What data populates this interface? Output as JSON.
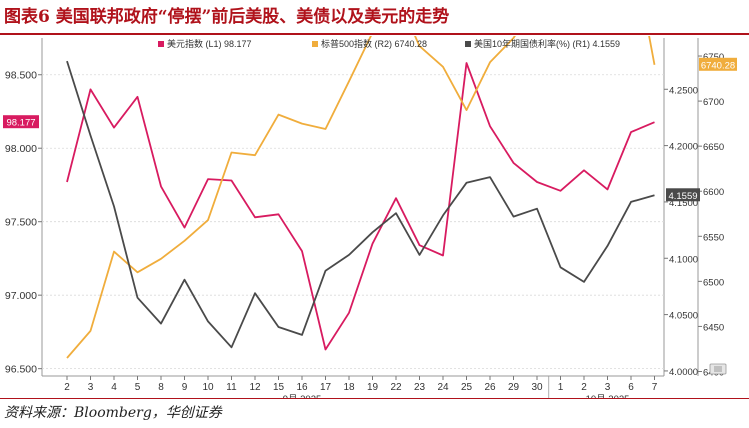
{
  "title": "图表6  美国联邦政府“停摆”前后美股、美债以及美元的走势",
  "source": "资料来源：Bloomberg，华创证券",
  "chart_data": {
    "type": "line",
    "categories": [
      "2",
      "3",
      "4",
      "5",
      "8",
      "9",
      "10",
      "11",
      "12",
      "15",
      "16",
      "17",
      "18",
      "19",
      "22",
      "23",
      "24",
      "25",
      "26",
      "29",
      "30",
      "1",
      "2",
      "3",
      "6",
      "7"
    ],
    "month_labels": [
      {
        "label": "9月 2025",
        "from_index": 0,
        "to_index": 20
      },
      {
        "label": "10月 2025",
        "from_index": 21,
        "to_index": 25
      }
    ],
    "left_axis": {
      "ylim": [
        96.45,
        98.75
      ],
      "ticks": [
        "96.500",
        "97.000",
        "97.500",
        "98.000",
        "98.500"
      ],
      "tick_values": [
        96.5,
        97.0,
        97.5,
        98.0,
        98.5
      ]
    },
    "right_axis_r1": {
      "ylim": [
        3.9955,
        4.2955
      ],
      "ticks": [
        "4.0000",
        "4.0500",
        "4.1000",
        "4.1500",
        "4.2000",
        "4.2500"
      ],
      "tick_values": [
        4.0,
        4.05,
        4.1,
        4.15,
        4.2,
        4.25
      ]
    },
    "right_axis_r2": {
      "ylim": [
        6395,
        6770
      ],
      "ticks": [
        "6400",
        "6450",
        "6500",
        "6550",
        "6600",
        "6650",
        "6700",
        "6750"
      ],
      "tick_values": [
        6400,
        6450,
        6500,
        6550,
        6600,
        6650,
        6700,
        6750
      ]
    },
    "series": [
      {
        "name": "美元指数 (L1) 98.177",
        "axis": "left",
        "color": "#d81b60",
        "values": [
          97.77,
          98.4,
          98.14,
          98.35,
          97.74,
          97.46,
          97.79,
          97.78,
          97.53,
          97.55,
          97.3,
          96.63,
          96.88,
          97.35,
          97.66,
          97.34,
          97.27,
          98.58,
          98.15,
          97.9,
          97.77,
          97.71,
          97.85,
          97.72,
          98.11,
          98.177
        ]
      },
      {
        "name": "标普500指数 (R2) 6740.28",
        "axis": "r2",
        "color": "#f0ad3c",
        "values": [
          6415,
          6445,
          6533,
          6510,
          6525,
          6545,
          6568,
          6643,
          6640,
          6685,
          6675,
          6669,
          6722,
          6776,
          6820,
          6761,
          6738,
          6690,
          6743,
          6770,
          6810,
          6845,
          6848,
          6849,
          6880,
          6740.28
        ]
      },
      {
        "name": "美国10年期国债利率(%) (R1) 4.1559",
        "axis": "r1",
        "color": "#4a4a4a",
        "values": [
          4.275,
          4.209,
          4.146,
          4.065,
          4.042,
          4.081,
          4.044,
          4.021,
          4.069,
          4.039,
          4.032,
          4.089,
          4.103,
          4.123,
          4.14,
          4.103,
          4.138,
          4.167,
          4.172,
          4.137,
          4.144,
          4.092,
          4.079,
          4.111,
          4.15,
          4.1559
        ]
      }
    ],
    "value_labels": [
      {
        "text": "98.177",
        "axis": "left",
        "value": 98.177,
        "color": "#d81b60"
      },
      {
        "text": "6740.28",
        "axis": "r2",
        "value": 6740.28,
        "color": "#f0ad3c"
      },
      {
        "text": "4.1559",
        "axis": "r1",
        "value": 4.1559,
        "color": "#4a4a4a"
      }
    ],
    "legend": {
      "placement": "top"
    },
    "grid": true
  }
}
